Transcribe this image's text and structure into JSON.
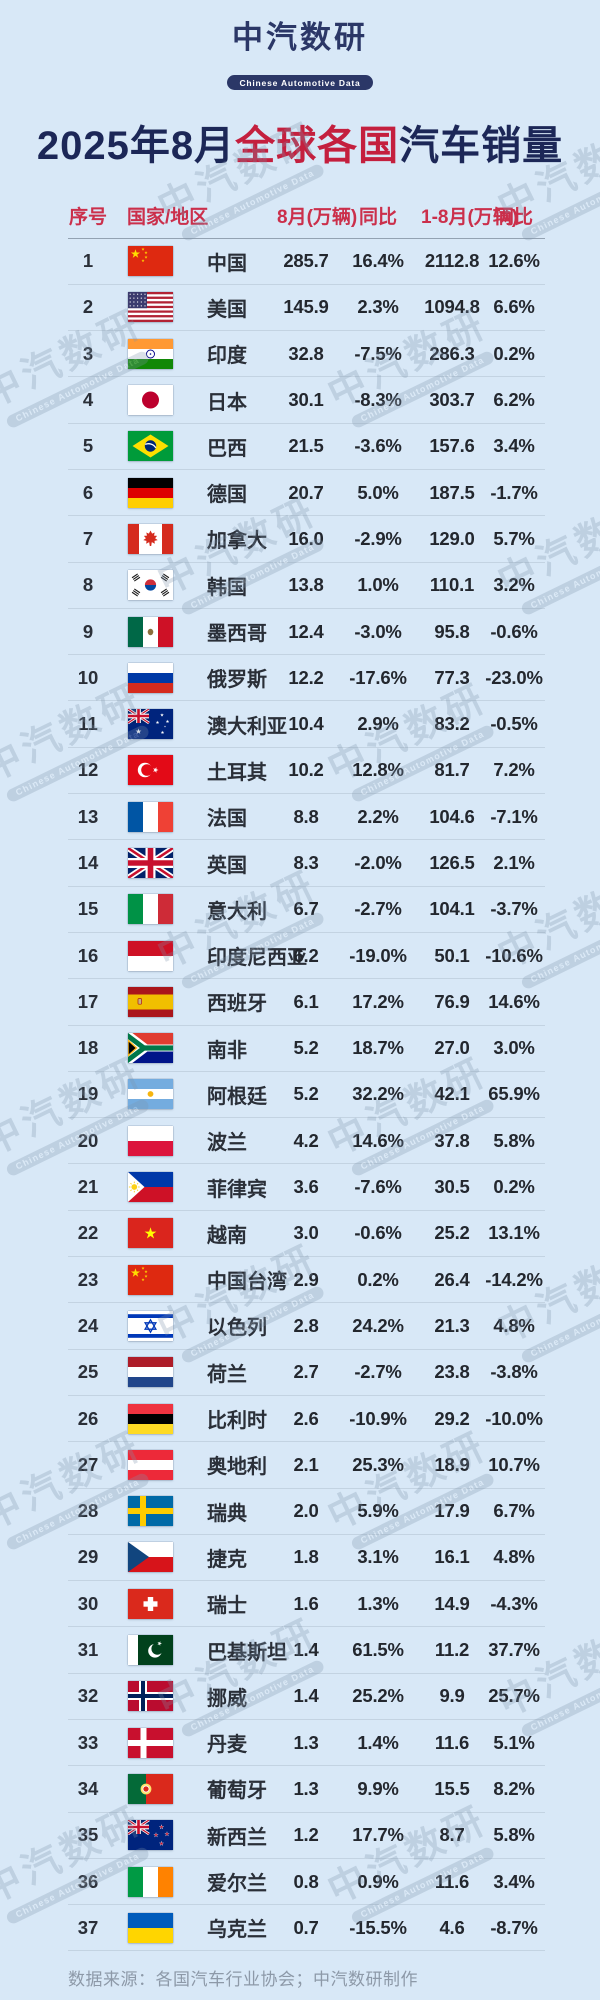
{
  "brand": {
    "name": "中汽数研",
    "tagline": "Chinese Automotive Data"
  },
  "title": {
    "part1": "2025年8月",
    "part2": "全球各国",
    "part3": "汽车销量",
    "full": "2025年8月全球各国汽车销量"
  },
  "watermark": {
    "text": "中汽数研",
    "subtext": "Chinese Automotive Data"
  },
  "footer": {
    "source": "数据来源：各国汽车行业协会；中汽数研制作"
  },
  "colors": {
    "background": "#d8e8f7",
    "navy": "#1c2757",
    "accent_red": "#c41f3e",
    "header_red": "#cb2f4b",
    "watermark": "#7e94ab"
  },
  "chart_data": {
    "type": "table",
    "title": "2025年8月全球各国汽车销量",
    "columns": [
      "序号",
      "国家/地区",
      "8月(万辆)",
      "同比",
      "1-8月(万辆)",
      "同比"
    ],
    "rows": [
      {
        "rank": "1",
        "flag": "cn",
        "country": "中国",
        "aug": "285.7",
        "yoy1": "16.4%",
        "ytd": "2112.8",
        "yoy2": "12.6%"
      },
      {
        "rank": "2",
        "flag": "us",
        "country": "美国",
        "aug": "145.9",
        "yoy1": "2.3%",
        "ytd": "1094.8",
        "yoy2": "6.6%"
      },
      {
        "rank": "3",
        "flag": "in",
        "country": "印度",
        "aug": "32.8",
        "yoy1": "-7.5%",
        "ytd": "286.3",
        "yoy2": "0.2%"
      },
      {
        "rank": "4",
        "flag": "jp",
        "country": "日本",
        "aug": "30.1",
        "yoy1": "-8.3%",
        "ytd": "303.7",
        "yoy2": "6.2%"
      },
      {
        "rank": "5",
        "flag": "br",
        "country": "巴西",
        "aug": "21.5",
        "yoy1": "-3.6%",
        "ytd": "157.6",
        "yoy2": "3.4%"
      },
      {
        "rank": "6",
        "flag": "de",
        "country": "德国",
        "aug": "20.7",
        "yoy1": "5.0%",
        "ytd": "187.5",
        "yoy2": "-1.7%"
      },
      {
        "rank": "7",
        "flag": "ca",
        "country": "加拿大",
        "aug": "16.0",
        "yoy1": "-2.9%",
        "ytd": "129.0",
        "yoy2": "5.7%"
      },
      {
        "rank": "8",
        "flag": "kr",
        "country": "韩国",
        "aug": "13.8",
        "yoy1": "1.0%",
        "ytd": "110.1",
        "yoy2": "3.2%"
      },
      {
        "rank": "9",
        "flag": "mx",
        "country": "墨西哥",
        "aug": "12.4",
        "yoy1": "-3.0%",
        "ytd": "95.8",
        "yoy2": "-0.6%"
      },
      {
        "rank": "10",
        "flag": "ru",
        "country": "俄罗斯",
        "aug": "12.2",
        "yoy1": "-17.6%",
        "ytd": "77.3",
        "yoy2": "-23.0%"
      },
      {
        "rank": "11",
        "flag": "au",
        "country": "澳大利亚",
        "aug": "10.4",
        "yoy1": "2.9%",
        "ytd": "83.2",
        "yoy2": "-0.5%"
      },
      {
        "rank": "12",
        "flag": "tr",
        "country": "土耳其",
        "aug": "10.2",
        "yoy1": "12.8%",
        "ytd": "81.7",
        "yoy2": "7.2%"
      },
      {
        "rank": "13",
        "flag": "fr",
        "country": "法国",
        "aug": "8.8",
        "yoy1": "2.2%",
        "ytd": "104.6",
        "yoy2": "-7.1%"
      },
      {
        "rank": "14",
        "flag": "gb",
        "country": "英国",
        "aug": "8.3",
        "yoy1": "-2.0%",
        "ytd": "126.5",
        "yoy2": "2.1%"
      },
      {
        "rank": "15",
        "flag": "it",
        "country": "意大利",
        "aug": "6.7",
        "yoy1": "-2.7%",
        "ytd": "104.1",
        "yoy2": "-3.7%"
      },
      {
        "rank": "16",
        "flag": "id",
        "country": "印度尼西亚",
        "aug": "6.2",
        "yoy1": "-19.0%",
        "ytd": "50.1",
        "yoy2": "-10.6%"
      },
      {
        "rank": "17",
        "flag": "es",
        "country": "西班牙",
        "aug": "6.1",
        "yoy1": "17.2%",
        "ytd": "76.9",
        "yoy2": "14.6%"
      },
      {
        "rank": "18",
        "flag": "za",
        "country": "南非",
        "aug": "5.2",
        "yoy1": "18.7%",
        "ytd": "27.0",
        "yoy2": "3.0%"
      },
      {
        "rank": "19",
        "flag": "ar",
        "country": "阿根廷",
        "aug": "5.2",
        "yoy1": "32.2%",
        "ytd": "42.1",
        "yoy2": "65.9%"
      },
      {
        "rank": "20",
        "flag": "pl",
        "country": "波兰",
        "aug": "4.2",
        "yoy1": "14.6%",
        "ytd": "37.8",
        "yoy2": "5.8%"
      },
      {
        "rank": "21",
        "flag": "ph",
        "country": "菲律宾",
        "aug": "3.6",
        "yoy1": "-7.6%",
        "ytd": "30.5",
        "yoy2": "0.2%"
      },
      {
        "rank": "22",
        "flag": "vn",
        "country": "越南",
        "aug": "3.0",
        "yoy1": "-0.6%",
        "ytd": "25.2",
        "yoy2": "13.1%"
      },
      {
        "rank": "23",
        "flag": "cn",
        "country": "中国台湾",
        "aug": "2.9",
        "yoy1": "0.2%",
        "ytd": "26.4",
        "yoy2": "-14.2%"
      },
      {
        "rank": "24",
        "flag": "il",
        "country": "以色列",
        "aug": "2.8",
        "yoy1": "24.2%",
        "ytd": "21.3",
        "yoy2": "4.8%"
      },
      {
        "rank": "25",
        "flag": "nl",
        "country": "荷兰",
        "aug": "2.7",
        "yoy1": "-2.7%",
        "ytd": "23.8",
        "yoy2": "-3.8%"
      },
      {
        "rank": "26",
        "flag": "be",
        "country": "比利时",
        "aug": "2.6",
        "yoy1": "-10.9%",
        "ytd": "29.2",
        "yoy2": "-10.0%"
      },
      {
        "rank": "27",
        "flag": "at",
        "country": "奥地利",
        "aug": "2.1",
        "yoy1": "25.3%",
        "ytd": "18.9",
        "yoy2": "10.7%"
      },
      {
        "rank": "28",
        "flag": "se",
        "country": "瑞典",
        "aug": "2.0",
        "yoy1": "5.9%",
        "ytd": "17.9",
        "yoy2": "6.7%"
      },
      {
        "rank": "29",
        "flag": "cz",
        "country": "捷克",
        "aug": "1.8",
        "yoy1": "3.1%",
        "ytd": "16.1",
        "yoy2": "4.8%"
      },
      {
        "rank": "30",
        "flag": "ch",
        "country": "瑞士",
        "aug": "1.6",
        "yoy1": "1.3%",
        "ytd": "14.9",
        "yoy2": "-4.3%"
      },
      {
        "rank": "31",
        "flag": "pk",
        "country": "巴基斯坦",
        "aug": "1.4",
        "yoy1": "61.5%",
        "ytd": "11.2",
        "yoy2": "37.7%"
      },
      {
        "rank": "32",
        "flag": "no",
        "country": "挪威",
        "aug": "1.4",
        "yoy1": "25.2%",
        "ytd": "9.9",
        "yoy2": "25.7%"
      },
      {
        "rank": "33",
        "flag": "dk",
        "country": "丹麦",
        "aug": "1.3",
        "yoy1": "1.4%",
        "ytd": "11.6",
        "yoy2": "5.1%"
      },
      {
        "rank": "34",
        "flag": "pt",
        "country": "葡萄牙",
        "aug": "1.3",
        "yoy1": "9.9%",
        "ytd": "15.5",
        "yoy2": "8.2%"
      },
      {
        "rank": "35",
        "flag": "nz",
        "country": "新西兰",
        "aug": "1.2",
        "yoy1": "17.7%",
        "ytd": "8.7",
        "yoy2": "5.8%"
      },
      {
        "rank": "36",
        "flag": "ie",
        "country": "爱尔兰",
        "aug": "0.8",
        "yoy1": "0.9%",
        "ytd": "11.6",
        "yoy2": "3.4%"
      },
      {
        "rank": "37",
        "flag": "ua",
        "country": "乌克兰",
        "aug": "0.7",
        "yoy1": "-15.5%",
        "ytd": "4.6",
        "yoy2": "-8.7%"
      }
    ]
  }
}
